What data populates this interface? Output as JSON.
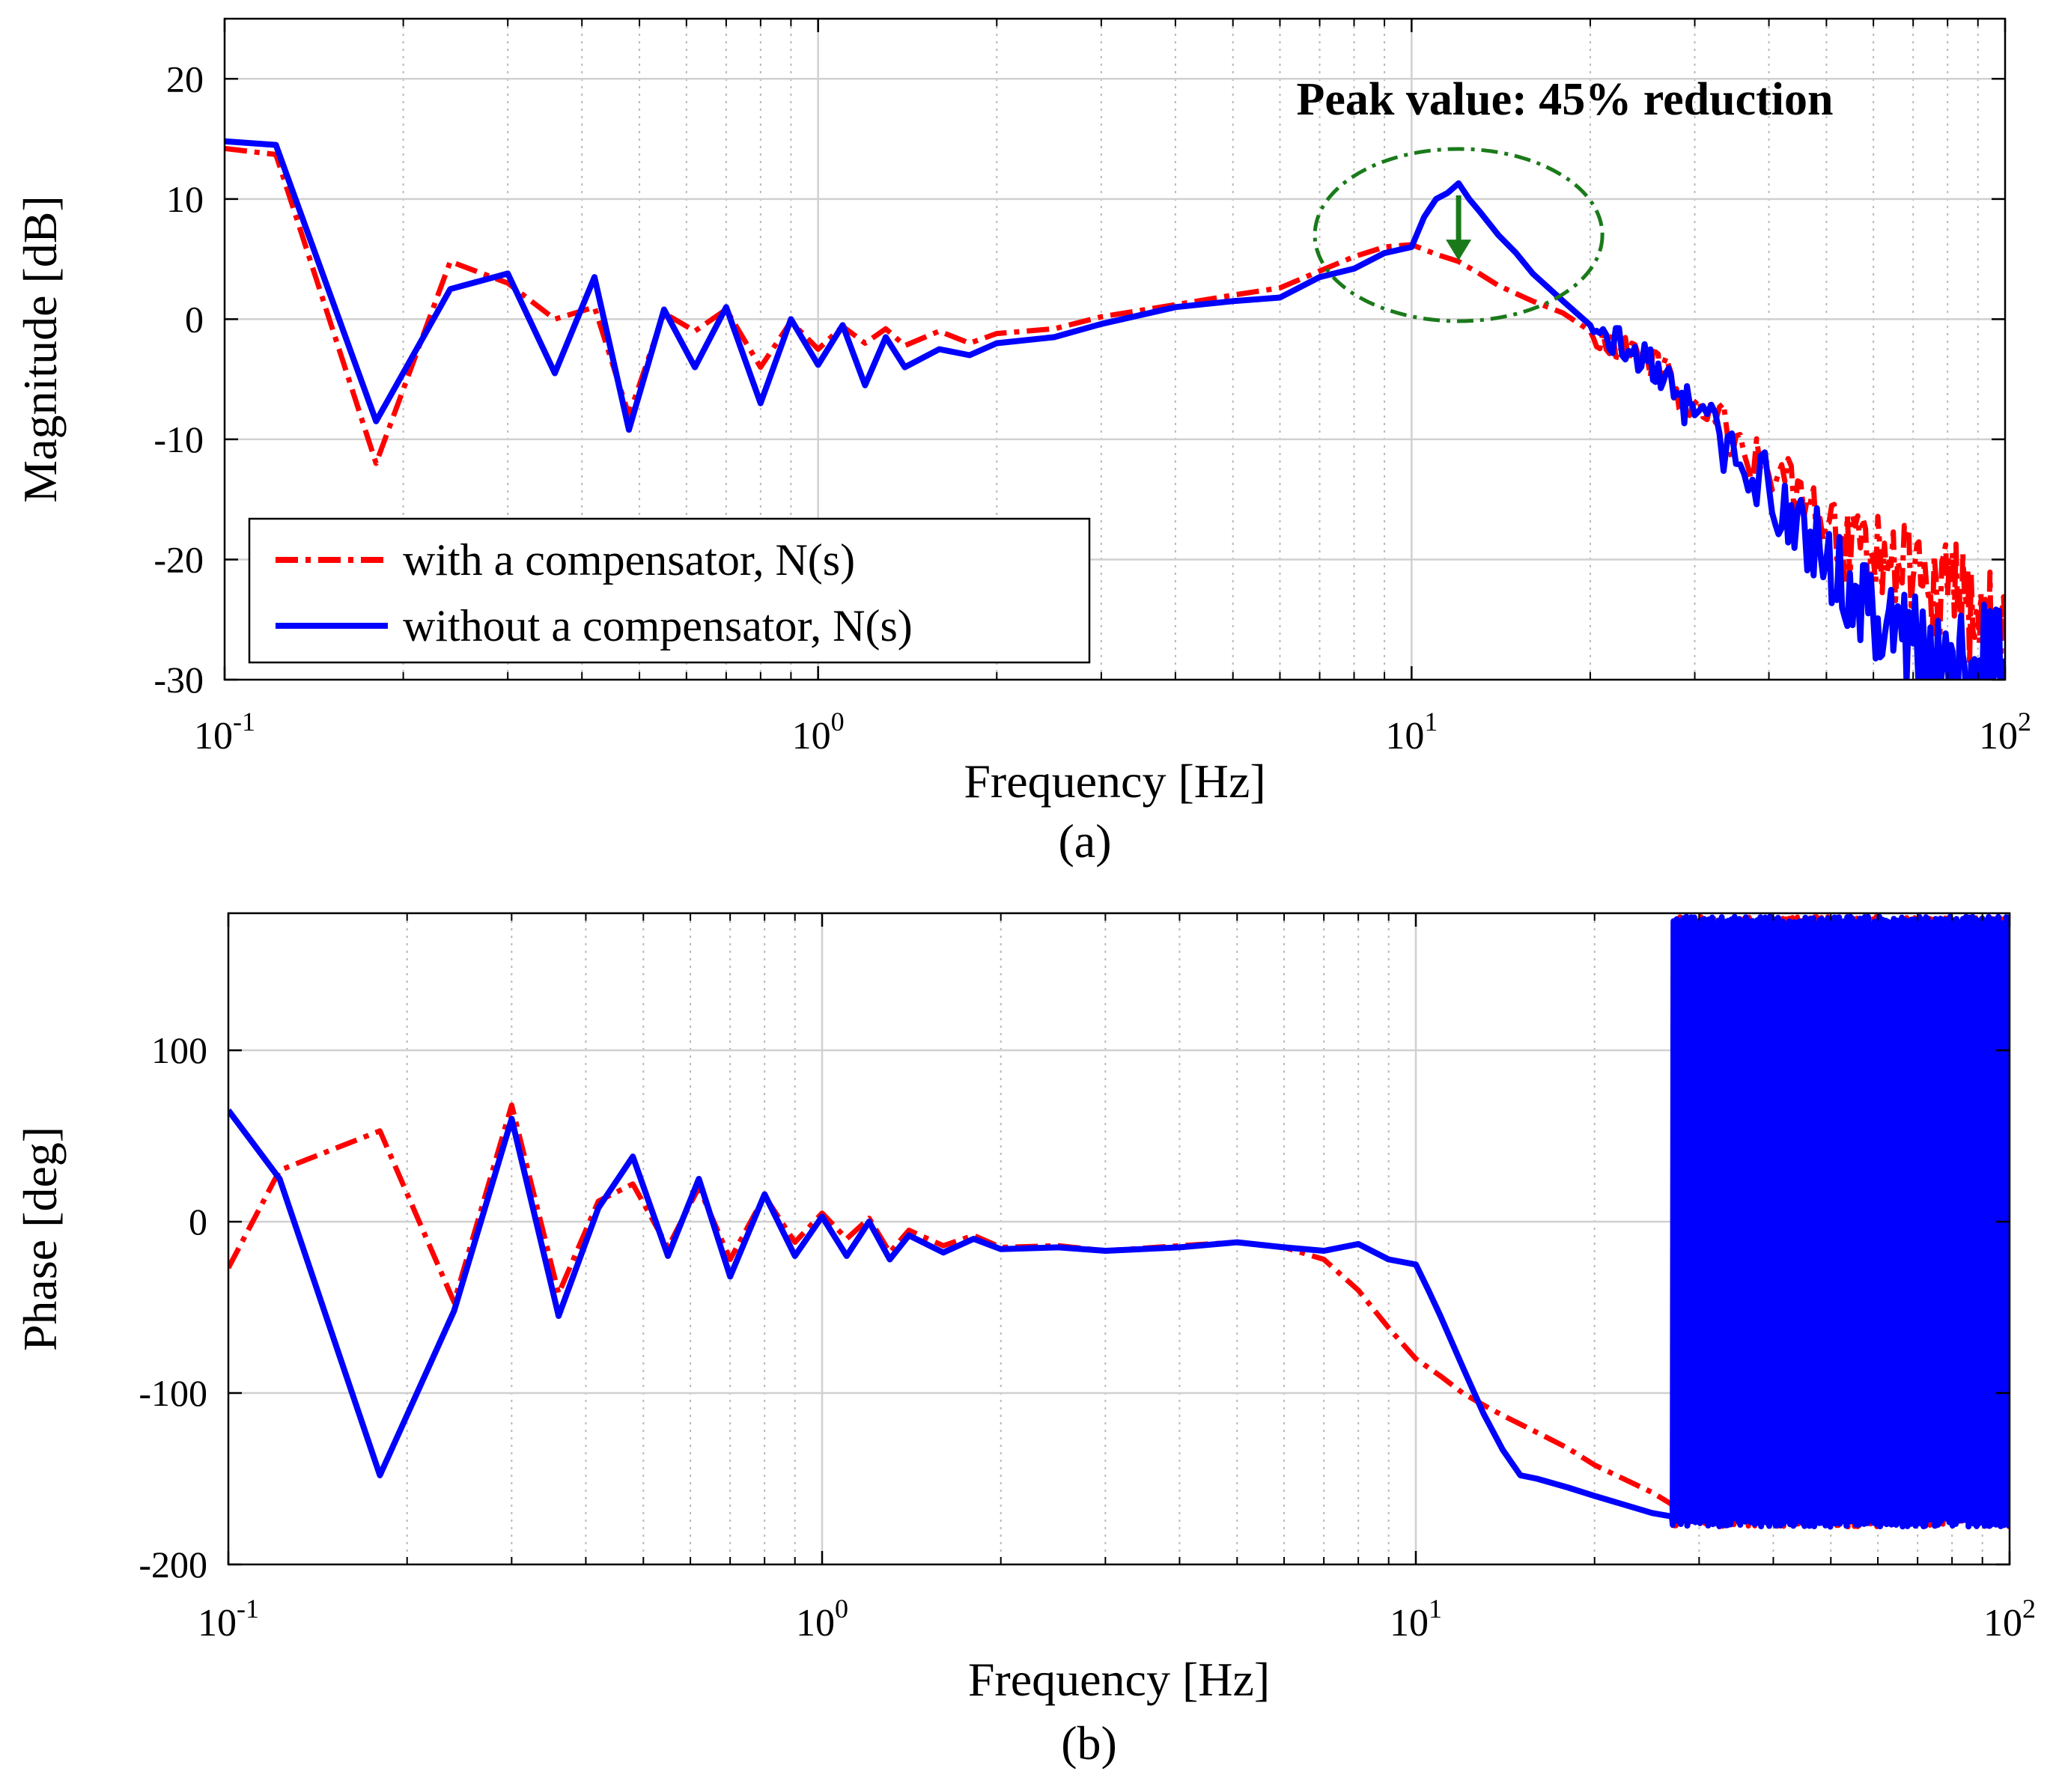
{
  "chart_data": [
    {
      "type": "line",
      "panel_label": "(a)",
      "xlabel": "Frequency [Hz]",
      "ylabel": "Magnitude [dB]",
      "xscale": "log",
      "xlim": [
        0.1,
        100
      ],
      "ylim": [
        -30,
        25
      ],
      "x_tick_labels": [
        {
          "value": 0.1,
          "base": "10",
          "exp": "-1"
        },
        {
          "value": 1,
          "base": "10",
          "exp": "0"
        },
        {
          "value": 10,
          "base": "10",
          "exp": "1"
        },
        {
          "value": 100,
          "base": "10",
          "exp": "2"
        }
      ],
      "y_ticks": [
        -30,
        -20,
        -10,
        0,
        10,
        20
      ],
      "y_tick_labels": [
        "-30",
        "-20",
        "-10",
        "0",
        "10",
        "20"
      ],
      "grid": true,
      "legend": {
        "position": "bottom-left",
        "entries": [
          "with a compensator, N(s)",
          "without a compensator, N(s)"
        ]
      },
      "annotation": {
        "text": "Peak value: 45% reduction",
        "ellipse_center": [
          12,
          7
        ],
        "arrow_from": [
          12,
          10.3
        ],
        "arrow_to": [
          12,
          5
        ],
        "color": "#1a7a1a"
      },
      "series": [
        {
          "name": "with a compensator, N(s)",
          "color": "#ff0000",
          "style": "dashdot",
          "x": [
            0.1,
            0.122,
            0.18,
            0.24,
            0.3,
            0.36,
            0.42,
            0.48,
            0.55,
            0.62,
            0.7,
            0.8,
            0.9,
            1.0,
            1.1,
            1.2,
            1.3,
            1.4,
            1.6,
            1.8,
            2.0,
            2.5,
            3.0,
            4.0,
            5.0,
            6.0,
            7.0,
            8.0,
            9.0,
            10.0,
            11.0,
            12.0,
            13.0,
            14.0,
            16.0,
            18.0,
            20.0,
            25.0,
            30.0,
            40.0,
            50.0,
            60.0,
            70.0,
            80.0,
            90.0,
            100.0
          ],
          "y": [
            14.2,
            13.7,
            -12.0,
            4.8,
            3.0,
            0.0,
            1.0,
            -8.0,
            0.5,
            -1.0,
            0.8,
            -4.0,
            -0.2,
            -2.5,
            -0.6,
            -2.0,
            -0.8,
            -2.2,
            -1.0,
            -2.0,
            -1.2,
            -0.8,
            0.2,
            1.2,
            2.0,
            2.6,
            4.0,
            5.2,
            6.0,
            6.2,
            5.4,
            4.8,
            3.8,
            2.8,
            1.5,
            0.5,
            -1.0,
            -3.5,
            -7.0,
            -13.0,
            -17.0,
            -20.0,
            -21.5,
            -23.0,
            -24.5,
            -26.0
          ]
        },
        {
          "name": "without a compensator, N(s)",
          "color": "#0000ff",
          "style": "solid",
          "x": [
            0.1,
            0.122,
            0.18,
            0.24,
            0.3,
            0.36,
            0.42,
            0.48,
            0.55,
            0.62,
            0.7,
            0.8,
            0.9,
            1.0,
            1.1,
            1.2,
            1.3,
            1.4,
            1.6,
            1.8,
            2.0,
            2.5,
            3.0,
            4.0,
            5.0,
            6.0,
            7.0,
            8.0,
            9.0,
            10.0,
            10.5,
            11.0,
            11.5,
            12.0,
            12.5,
            13.0,
            14.0,
            15.0,
            16.0,
            18.0,
            20.0,
            25.0,
            30.0,
            40.0,
            50.0,
            60.0,
            70.0,
            80.0,
            90.0,
            100.0
          ],
          "y": [
            14.8,
            14.5,
            -8.5,
            2.5,
            3.8,
            -4.5,
            3.5,
            -9.2,
            0.8,
            -4.0,
            1.0,
            -7.0,
            0.0,
            -3.8,
            -0.5,
            -5.5,
            -1.5,
            -4.0,
            -2.5,
            -3.0,
            -2.0,
            -1.5,
            -0.4,
            1.0,
            1.5,
            1.8,
            3.5,
            4.2,
            5.5,
            6.0,
            8.5,
            10.0,
            10.5,
            11.3,
            10.0,
            9.0,
            7.0,
            5.5,
            3.8,
            1.5,
            -0.5,
            -3.5,
            -8.0,
            -14.0,
            -20.0,
            -25.0,
            -27.0,
            -28.0,
            -28.5,
            -29.0
          ]
        }
      ]
    },
    {
      "type": "line",
      "panel_label": "(b)",
      "xlabel": "Frequency [Hz]",
      "ylabel": "Phase [deg]",
      "xscale": "log",
      "xlim": [
        0.1,
        100
      ],
      "ylim": [
        -200,
        180
      ],
      "x_tick_labels": [
        {
          "value": 0.1,
          "base": "10",
          "exp": "-1"
        },
        {
          "value": 1,
          "base": "10",
          "exp": "0"
        },
        {
          "value": 10,
          "base": "10",
          "exp": "1"
        },
        {
          "value": 100,
          "base": "10",
          "exp": "2"
        }
      ],
      "y_ticks": [
        -200,
        -100,
        0,
        100
      ],
      "y_tick_labels": [
        "-200",
        "-100",
        "0",
        "100"
      ],
      "grid": true,
      "series": [
        {
          "name": "with a compensator, N(s)",
          "color": "#ff0000",
          "style": "dashdot",
          "wrap_start_hz": 27,
          "x": [
            0.1,
            0.122,
            0.18,
            0.24,
            0.3,
            0.36,
            0.42,
            0.48,
            0.55,
            0.62,
            0.7,
            0.8,
            0.9,
            1.0,
            1.1,
            1.2,
            1.3,
            1.4,
            1.6,
            1.8,
            2.0,
            2.5,
            3.0,
            4.0,
            5.0,
            6.0,
            7.0,
            8.0,
            9.0,
            10.0,
            11.0,
            12.0,
            13.0,
            14.0,
            16.0,
            18.0,
            20.0,
            25.0,
            27.0
          ],
          "y": [
            -27,
            30,
            53,
            -47,
            68,
            -42,
            12,
            22,
            -15,
            20,
            -22,
            15,
            -12,
            5,
            -10,
            2,
            -18,
            -5,
            -14,
            -8,
            -15,
            -14,
            -17,
            -14,
            -12,
            -15,
            -22,
            -40,
            -62,
            -80,
            -90,
            -100,
            -107,
            -113,
            -123,
            -132,
            -142,
            -158,
            -165
          ]
        },
        {
          "name": "without a compensator, N(s)",
          "color": "#0000ff",
          "style": "solid",
          "wrap_start_hz": 27,
          "x": [
            0.1,
            0.122,
            0.18,
            0.24,
            0.3,
            0.36,
            0.42,
            0.48,
            0.55,
            0.62,
            0.7,
            0.8,
            0.9,
            1.0,
            1.1,
            1.2,
            1.3,
            1.4,
            1.6,
            1.8,
            2.0,
            2.5,
            3.0,
            4.0,
            5.0,
            6.0,
            7.0,
            8.0,
            9.0,
            10.0,
            10.5,
            11.0,
            12.0,
            13.0,
            14.0,
            15.0,
            16.0,
            18.0,
            20.0,
            25.0,
            27.0
          ],
          "y": [
            65,
            25,
            -148,
            -52,
            60,
            -55,
            8,
            38,
            -20,
            25,
            -32,
            16,
            -20,
            3,
            -20,
            0,
            -22,
            -8,
            -18,
            -10,
            -16,
            -15,
            -17,
            -15,
            -12,
            -15,
            -17,
            -13,
            -22,
            -25,
            -40,
            -55,
            -85,
            -112,
            -133,
            -148,
            -150,
            -155,
            -160,
            -170,
            -172
          ]
        }
      ]
    }
  ]
}
